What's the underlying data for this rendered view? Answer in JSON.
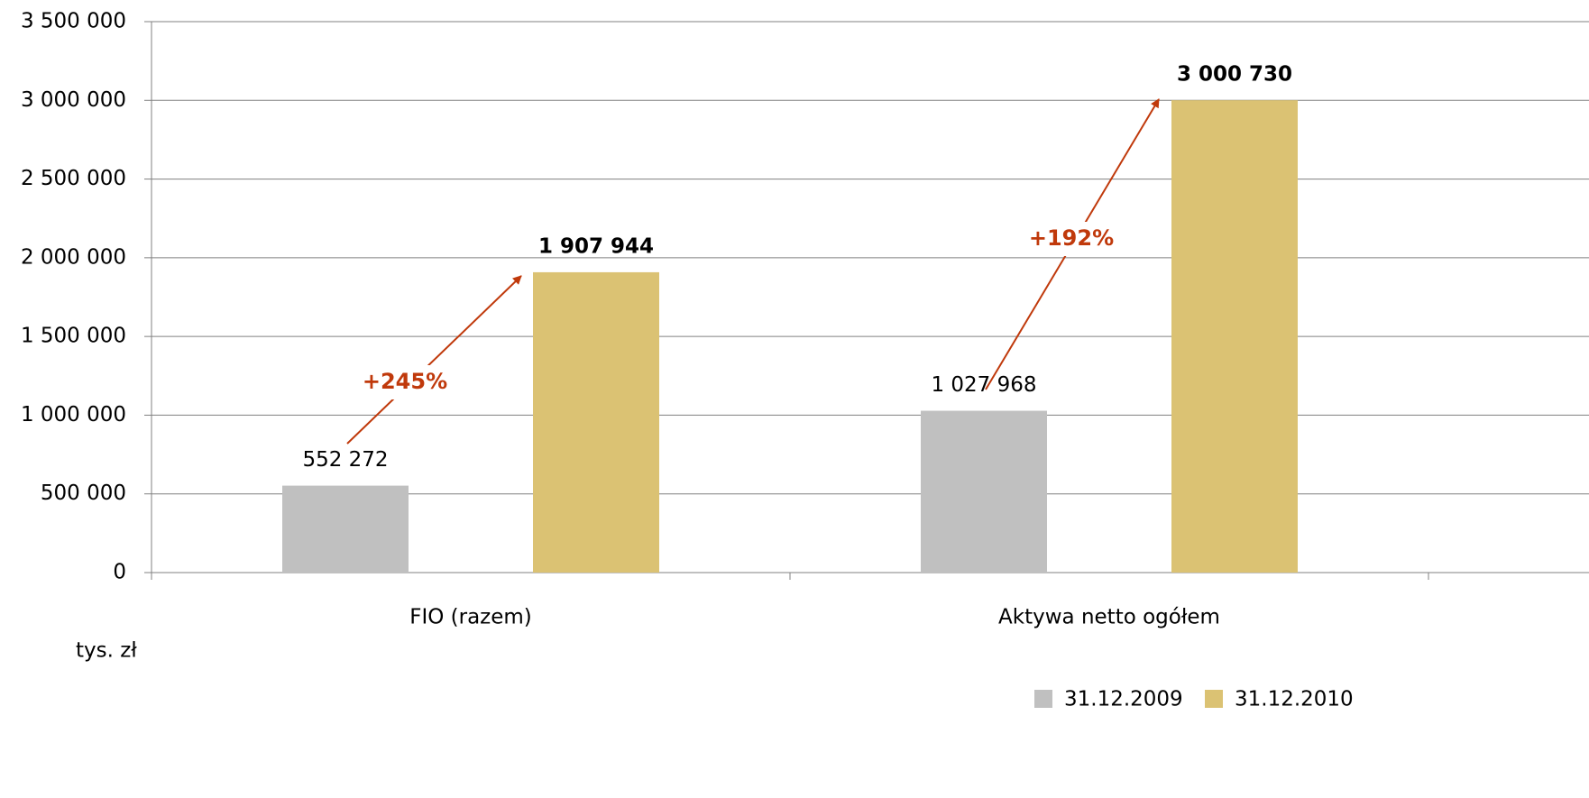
{
  "chart_data": {
    "type": "bar",
    "categories": [
      "FIO (razem)",
      "Aktywa netto ogółem"
    ],
    "series": [
      {
        "name": "31.12.2009",
        "color": "#c0c0c0",
        "values": [
          552272,
          1027968
        ],
        "value_labels": [
          "552 272",
          "1 027 968"
        ]
      },
      {
        "name": "31.12.2010",
        "color": "#dbc273",
        "values": [
          1907944,
          3000730
        ],
        "value_labels": [
          "1 907 944",
          "3 000 730"
        ]
      }
    ],
    "ylim": [
      0,
      3500000
    ],
    "yticks": [
      0,
      {
        "value": 500000,
        "label": "500 000"
      },
      {
        "value": 1000000,
        "label": "1 000 000"
      },
      {
        "value": 1500000,
        "label": "1 500 000"
      },
      {
        "value": 2000000,
        "label": "2 000 000"
      },
      {
        "value": 2500000,
        "label": "2 500 000"
      },
      {
        "value": 3000000,
        "label": "3 000 000"
      },
      {
        "value": 3500000,
        "label": "3 500 000"
      }
    ],
    "grid": true,
    "axis_label": "tys. zł",
    "annotations": [
      "+245%",
      "+192%"
    ],
    "legend": "bottom-right"
  }
}
